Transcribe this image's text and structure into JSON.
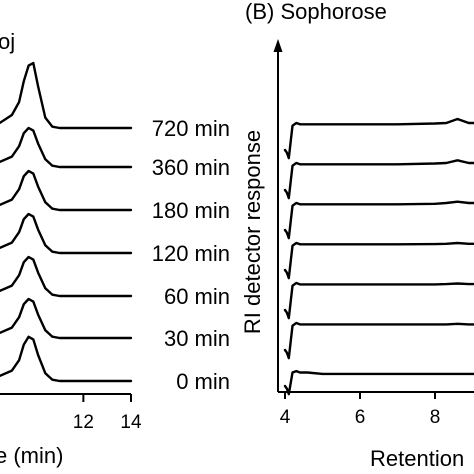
{
  "chart_data": [
    {
      "type": "line",
      "panel": "A",
      "title": "(A) Sophorose + Toj",
      "xlabel": "Retention time (min)",
      "ylabel": "",
      "x_ticks": [
        12,
        14
      ],
      "xlim": [
        8.5,
        14
      ],
      "series": [
        {
          "name": "720 min",
          "x": [
            8.5,
            9.0,
            9.3,
            9.5,
            9.7,
            9.9,
            10.1,
            10.4,
            10.7,
            11.0,
            12.0,
            13.0,
            14.0
          ],
          "y": [
            0.2,
            0.5,
            1.0,
            1.8,
            2.4,
            2.5,
            1.6,
            0.4,
            0.05,
            0.0,
            0.0,
            0.0,
            0.0
          ]
        },
        {
          "name": "360 min",
          "x": [
            8.5,
            9.0,
            9.3,
            9.5,
            9.7,
            9.9,
            10.1,
            10.4,
            10.7,
            11.0,
            12.0,
            13.0,
            14.0
          ],
          "y": [
            0.2,
            0.4,
            0.8,
            1.3,
            1.5,
            1.4,
            0.9,
            0.3,
            0.05,
            0.0,
            0.0,
            0.0,
            0.0
          ]
        },
        {
          "name": "180 min",
          "x": [
            8.5,
            9.0,
            9.3,
            9.5,
            9.7,
            9.9,
            10.1,
            10.4,
            10.7,
            11.0,
            12.0,
            13.0,
            14.0
          ],
          "y": [
            0.2,
            0.4,
            0.8,
            1.3,
            1.5,
            1.4,
            0.9,
            0.3,
            0.05,
            0.0,
            0.0,
            0.0,
            0.0
          ]
        },
        {
          "name": "120 min",
          "x": [
            8.5,
            9.0,
            9.3,
            9.5,
            9.7,
            9.9,
            10.1,
            10.4,
            10.7,
            11.0,
            12.0,
            13.0,
            14.0
          ],
          "y": [
            0.2,
            0.4,
            0.8,
            1.3,
            1.5,
            1.4,
            0.9,
            0.3,
            0.05,
            0.0,
            0.0,
            0.0,
            0.0
          ]
        },
        {
          "name": "60 min",
          "x": [
            8.5,
            9.0,
            9.3,
            9.5,
            9.7,
            9.9,
            10.1,
            10.4,
            10.7,
            11.0,
            12.0,
            13.0,
            14.0
          ],
          "y": [
            0.2,
            0.4,
            0.8,
            1.3,
            1.5,
            1.4,
            0.9,
            0.3,
            0.05,
            0.0,
            0.0,
            0.0,
            0.0
          ]
        },
        {
          "name": "30 min",
          "x": [
            8.5,
            9.0,
            9.3,
            9.5,
            9.7,
            9.9,
            10.1,
            10.4,
            10.7,
            11.0,
            12.0,
            13.0,
            14.0
          ],
          "y": [
            0.2,
            0.4,
            0.8,
            1.3,
            1.5,
            1.4,
            0.9,
            0.3,
            0.05,
            0.0,
            0.0,
            0.0,
            0.0
          ]
        },
        {
          "name": "0 min",
          "x": [
            8.5,
            9.0,
            9.3,
            9.5,
            9.7,
            9.9,
            10.1,
            10.4,
            10.7,
            11.0,
            12.0,
            13.0,
            14.0
          ],
          "y": [
            0.2,
            0.4,
            0.8,
            1.4,
            1.7,
            1.6,
            1.0,
            0.3,
            0.05,
            0.0,
            0.0,
            0.0,
            0.0
          ]
        }
      ],
      "grid": false
    },
    {
      "type": "line",
      "panel": "B",
      "title": "(B) Sophorose",
      "xlabel": "Retention time (min)",
      "ylabel": "RI detector response",
      "x_ticks": [
        4,
        6,
        8
      ],
      "xlim": [
        3.9,
        9.7
      ],
      "series": [
        {
          "x": [
            4.0,
            4.05,
            4.1,
            4.2,
            4.3,
            4.4,
            4.6,
            5.0,
            6.0,
            7.0,
            8.0,
            8.3,
            8.6,
            8.9,
            9.5
          ],
          "y": [
            0.0,
            -0.1,
            -0.3,
            0.9,
            1.0,
            0.95,
            0.95,
            0.95,
            0.95,
            0.95,
            0.98,
            1.0,
            1.15,
            1.0,
            1.0
          ]
        },
        {
          "x": [
            4.0,
            4.05,
            4.1,
            4.2,
            4.3,
            4.4,
            4.6,
            5.0,
            6.0,
            7.0,
            8.0,
            8.3,
            8.6,
            8.9,
            9.5
          ],
          "y": [
            0.0,
            -0.1,
            -0.3,
            0.9,
            1.0,
            0.95,
            0.95,
            0.95,
            0.95,
            0.95,
            0.98,
            1.0,
            1.1,
            1.0,
            1.0
          ]
        },
        {
          "x": [
            4.0,
            4.05,
            4.1,
            4.2,
            4.3,
            4.4,
            4.6,
            5.0,
            6.0,
            7.0,
            8.0,
            8.3,
            8.6,
            8.9,
            9.5
          ],
          "y": [
            0.0,
            -0.1,
            -0.3,
            0.9,
            1.0,
            0.95,
            0.95,
            0.95,
            0.95,
            0.95,
            0.97,
            1.0,
            1.05,
            1.0,
            1.0
          ]
        },
        {
          "x": [
            4.0,
            4.05,
            4.1,
            4.2,
            4.3,
            4.4,
            4.6,
            5.0,
            6.0,
            7.0,
            8.0,
            8.3,
            8.6,
            8.9,
            9.5
          ],
          "y": [
            0.0,
            -0.1,
            -0.3,
            0.9,
            1.0,
            0.95,
            0.95,
            0.95,
            0.95,
            0.95,
            0.96,
            0.97,
            1.0,
            0.97,
            0.97
          ]
        },
        {
          "x": [
            4.0,
            4.05,
            4.1,
            4.2,
            4.3,
            4.4,
            4.6,
            5.0,
            6.0,
            7.0,
            8.0,
            8.3,
            8.6,
            8.9,
            9.5
          ],
          "y": [
            0.0,
            -0.1,
            -0.3,
            0.9,
            1.0,
            0.95,
            0.95,
            0.95,
            0.95,
            0.95,
            0.95,
            0.96,
            0.98,
            0.96,
            0.96
          ]
        },
        {
          "x": [
            4.0,
            4.05,
            4.1,
            4.2,
            4.3,
            4.4,
            4.6,
            5.0,
            6.0,
            7.0,
            8.0,
            8.3,
            8.6,
            8.9,
            9.5
          ],
          "y": [
            0.0,
            -0.1,
            -0.3,
            0.9,
            1.0,
            0.95,
            0.95,
            0.95,
            0.95,
            0.95,
            0.95,
            0.95,
            0.97,
            0.95,
            0.95
          ]
        },
        {
          "x": [
            4.0,
            4.05,
            4.1,
            4.2,
            4.3,
            4.4,
            4.6,
            5.0,
            6.0,
            7.0,
            8.0,
            8.3,
            8.6,
            8.9,
            9.5
          ],
          "y": [
            0.0,
            -0.1,
            -0.3,
            0.5,
            0.55,
            0.5,
            0.5,
            0.45,
            0.45,
            0.45,
            0.45,
            0.45,
            0.45,
            0.45,
            0.45
          ]
        }
      ],
      "grid": false
    }
  ],
  "display": {
    "panel_a_title_fragment": "oj",
    "panel_a_xlabel_fragment": "e (min)",
    "panel_b_xlabel_fragment": "Retention"
  }
}
